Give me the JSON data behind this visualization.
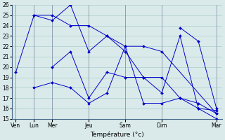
{
  "background_color": "#daeaea",
  "grid_color": "#aacccc",
  "line_color": "#0000cc",
  "xlabel": "Température (°c)",
  "ylim": [
    15,
    26
  ],
  "xlim": [
    -0.2,
    11.3
  ],
  "day_tick_positions": [
    0.0,
    1.0,
    2.0,
    4.0,
    6.0,
    8.0,
    11.0
  ],
  "day_tick_labels": [
    "Ven",
    "Lun",
    "Mer",
    "Jeu",
    "Sam",
    "Dim",
    "Mar"
  ],
  "series": [
    {
      "x": [
        0,
        1,
        2,
        3,
        4,
        5,
        6,
        7,
        8,
        11
      ],
      "y": [
        19.5,
        25.0,
        25.0,
        24.0,
        24.0,
        23.0,
        22.0,
        22.0,
        21.5,
        15.5
      ]
    },
    {
      "x": [
        1,
        2,
        3,
        4,
        5,
        6,
        7,
        8,
        9,
        10,
        11
      ],
      "y": [
        25.0,
        24.5,
        26.0,
        21.5,
        23.0,
        21.5,
        19.0,
        19.0,
        17.0,
        16.0,
        15.0
      ]
    },
    {
      "x": [
        1,
        2,
        3,
        4,
        5,
        6,
        7,
        8,
        9,
        10,
        11
      ],
      "y": [
        18.0,
        18.5,
        18.0,
        16.5,
        17.5,
        22.0,
        16.5,
        16.5,
        17.0,
        16.5,
        15.5
      ]
    },
    {
      "x": [
        2,
        3,
        4,
        5,
        6,
        7,
        8,
        9,
        10,
        11
      ],
      "y": [
        20.0,
        21.5,
        17.0,
        19.5,
        19.0,
        19.0,
        17.5,
        23.0,
        16.0,
        15.8
      ]
    },
    {
      "x": [
        9,
        10,
        11
      ],
      "y": [
        23.8,
        22.5,
        16.0
      ]
    }
  ]
}
